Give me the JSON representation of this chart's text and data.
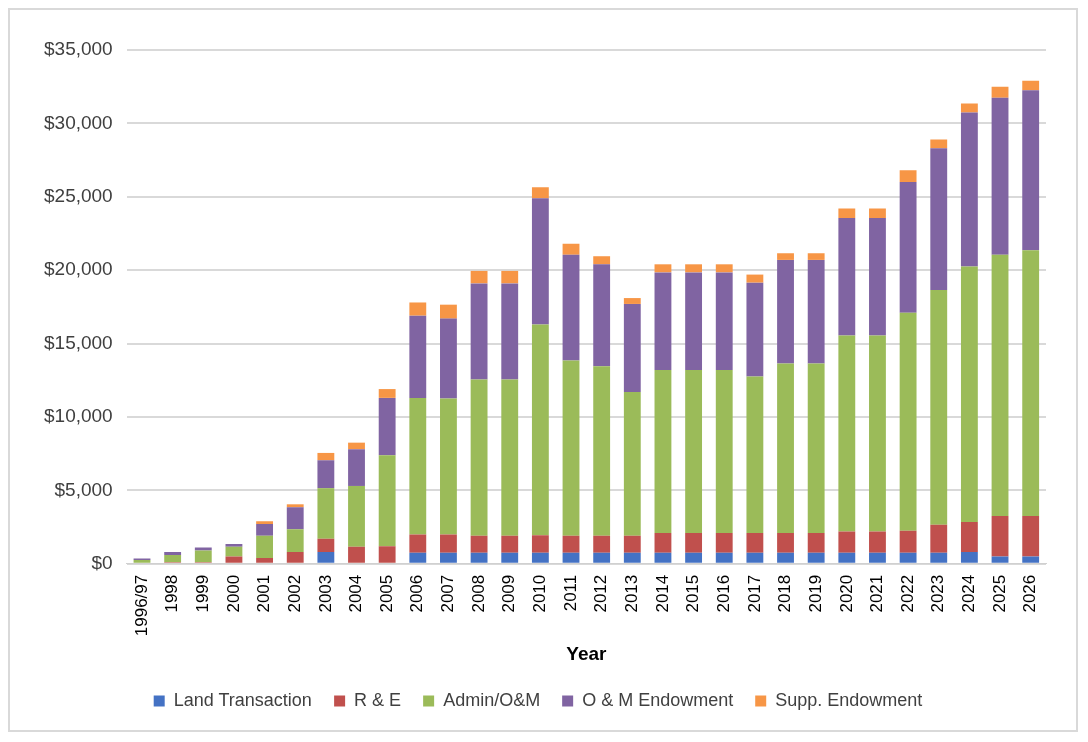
{
  "chart_data": {
    "type": "bar",
    "stacked": true,
    "xlabel": "Year",
    "legend": "bottom",
    "grid": "y",
    "categories": [
      "1996/97",
      "1998",
      "1999",
      "2000",
      "2001",
      "2002",
      "2003",
      "2004",
      "2005",
      "2006",
      "2007",
      "2008",
      "2009",
      "2010",
      "2011",
      "2012",
      "2013",
      "2014",
      "2015",
      "2016",
      "2017",
      "2018",
      "2019",
      "2020",
      "2021",
      "2022",
      "2023",
      "2024",
      "2025",
      "2026"
    ],
    "ylim": [
      0,
      35000
    ],
    "yticks": [
      {
        "value": 0,
        "label": "$0"
      },
      {
        "value": 5000,
        "label": "$5,000"
      },
      {
        "value": 10000,
        "label": "$10,000"
      },
      {
        "value": 15000,
        "label": "$15,000"
      },
      {
        "value": 20000,
        "label": "$20,000"
      },
      {
        "value": 25000,
        "label": "$25,000"
      },
      {
        "value": 30000,
        "label": "$30,000"
      },
      {
        "value": 35000,
        "label": "$35,000"
      }
    ],
    "series": [
      {
        "name": "Land Transaction",
        "color": "#4472c4",
        "values": [
          0,
          0,
          0,
          0,
          0,
          0,
          800,
          0,
          0,
          750,
          750,
          750,
          750,
          750,
          750,
          750,
          750,
          750,
          750,
          750,
          750,
          750,
          750,
          750,
          750,
          750,
          750,
          800,
          500,
          500
        ]
      },
      {
        "name": "R & E",
        "color": "#c0504d",
        "values": [
          0,
          100,
          100,
          500,
          400,
          800,
          900,
          1150,
          1200,
          1250,
          1250,
          1150,
          1150,
          1200,
          1150,
          1150,
          1150,
          1350,
          1350,
          1350,
          1350,
          1350,
          1350,
          1450,
          1450,
          1500,
          1900,
          2050,
          2750,
          2750
        ]
      },
      {
        "name": "Admin/O&M",
        "color": "#9bbb59",
        "values": [
          250,
          500,
          800,
          650,
          1500,
          1550,
          3450,
          4150,
          6200,
          9300,
          9250,
          10650,
          10650,
          14350,
          11950,
          11550,
          9800,
          11100,
          11100,
          11100,
          10650,
          11550,
          11550,
          13350,
          13350,
          14850,
          16000,
          17400,
          17800,
          18100
        ]
      },
      {
        "name": "O & M Endowment",
        "color": "#8064a2",
        "values": [
          100,
          200,
          200,
          200,
          800,
          1500,
          1900,
          2500,
          3900,
          5600,
          5450,
          6550,
          6550,
          8600,
          7200,
          6950,
          6000,
          6650,
          6650,
          6650,
          6400,
          7050,
          7050,
          8000,
          8000,
          8900,
          9650,
          10500,
          10700,
          10900
        ]
      },
      {
        "name": "Supp. Endowment",
        "color": "#f79646",
        "values": [
          0,
          0,
          0,
          0,
          200,
          200,
          500,
          450,
          600,
          900,
          950,
          850,
          850,
          750,
          750,
          550,
          400,
          550,
          550,
          550,
          550,
          450,
          450,
          650,
          650,
          800,
          600,
          600,
          750,
          650
        ]
      }
    ]
  }
}
